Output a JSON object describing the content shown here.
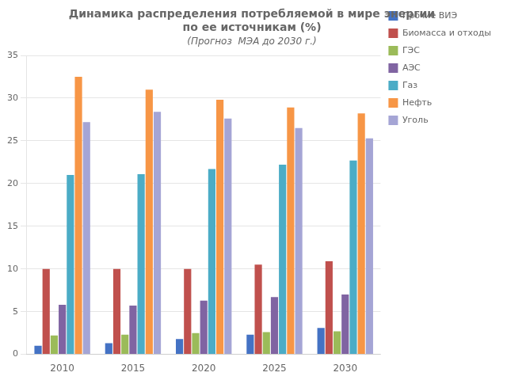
{
  "chart_data": {
    "type": "bar",
    "title": [
      "Динамика распределения потребляемой в мире энергии",
      "по ее источникам (%)"
    ],
    "subtitle": "(Прогноз  МЭА до 2030 г.)",
    "categories": [
      "2010",
      "2015",
      "2020",
      "2025",
      "2030"
    ],
    "series": [
      {
        "name": "Прочие ВИЭ",
        "color": "#4472C4",
        "values": [
          1.0,
          1.3,
          1.8,
          2.3,
          3.1
        ]
      },
      {
        "name": "Биомасса и отходы",
        "color": "#C0504D",
        "values": [
          10.0,
          10.0,
          10.0,
          10.5,
          10.9
        ]
      },
      {
        "name": "ГЭС",
        "color": "#9BBB59",
        "values": [
          2.2,
          2.3,
          2.5,
          2.6,
          2.7
        ]
      },
      {
        "name": "АЭС",
        "color": "#8064A2",
        "values": [
          5.8,
          5.7,
          6.3,
          6.7,
          7.0
        ]
      },
      {
        "name": "Газ",
        "color": "#4BACC6",
        "values": [
          21.0,
          21.1,
          21.7,
          22.2,
          22.7
        ]
      },
      {
        "name": "Нефть",
        "color": "#F79646",
        "values": [
          32.5,
          31.0,
          29.8,
          28.9,
          28.2
        ]
      },
      {
        "name": "Уголь",
        "color": "#A5A5D5",
        "values": [
          27.2,
          28.4,
          27.6,
          26.5,
          25.3
        ]
      }
    ],
    "ylim": [
      0,
      35
    ],
    "yticks": [
      0,
      5,
      10,
      15,
      20,
      25,
      30,
      35
    ],
    "grid": true,
    "legend": "right"
  }
}
